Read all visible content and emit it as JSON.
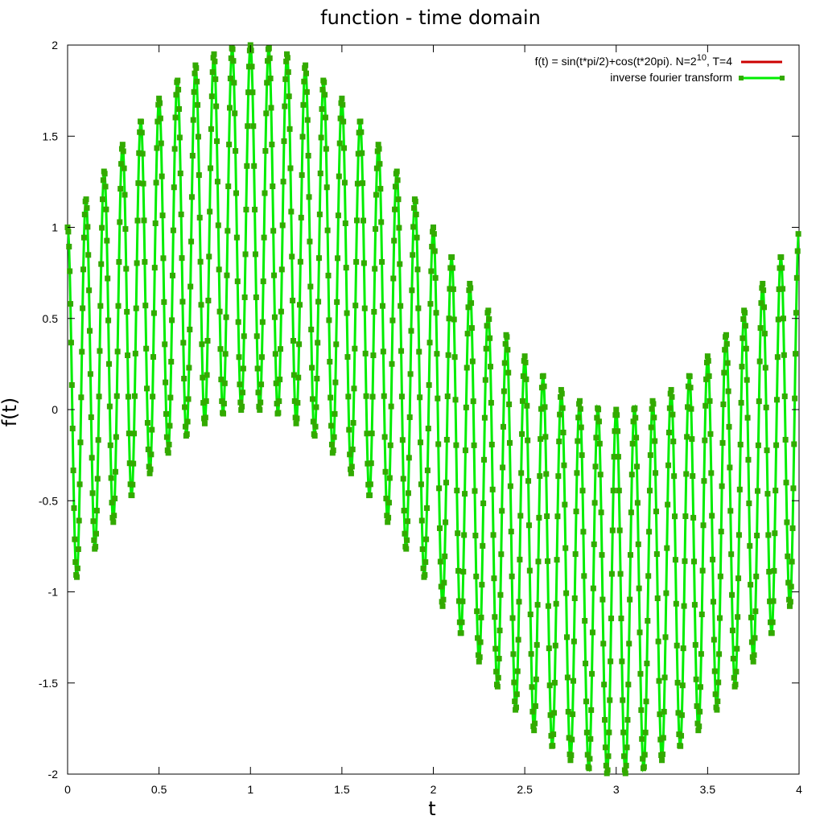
{
  "chart_data": {
    "type": "line",
    "title": "function - time domain",
    "xlabel": "t",
    "ylabel": "f(t)",
    "xlim": [
      0,
      4
    ],
    "ylim": [
      -2,
      2
    ],
    "x_ticks": [
      "0",
      "0.5",
      "1",
      "1.5",
      "2",
      "2.5",
      "3",
      "3.5",
      "4"
    ],
    "y_ticks": [
      "2",
      "1.5",
      "1",
      "0.5",
      "0",
      "-0.5",
      "-1",
      "-1.5",
      "-2"
    ],
    "x_tick_values": [
      0,
      0.5,
      1,
      1.5,
      2,
      2.5,
      3,
      3.5,
      4
    ],
    "y_tick_values": [
      2,
      1.5,
      1,
      0.5,
      0,
      -0.5,
      -1,
      -1.5,
      -2
    ],
    "grid": false,
    "legend_position": "top-right",
    "function": "sin(t*pi/2)+cos(t*20pi)",
    "N": 1024,
    "T": 4,
    "legend": {
      "entry1_main": "f(t) = sin(t*pi/2)+cos(t*20pi). N=2",
      "entry1_exp": "10",
      "entry1_tail": ", T=4",
      "entry2": "inverse fourier transform"
    },
    "series": [
      {
        "name": "f(t) = sin(t*pi/2)+cos(t*20pi). N=2 10, T=4",
        "color": "#cc0000",
        "style": "line"
      },
      {
        "name": "inverse fourier transform",
        "color": "#00ee00",
        "marker_color": "#33aa00",
        "style": "linespoints"
      }
    ]
  }
}
